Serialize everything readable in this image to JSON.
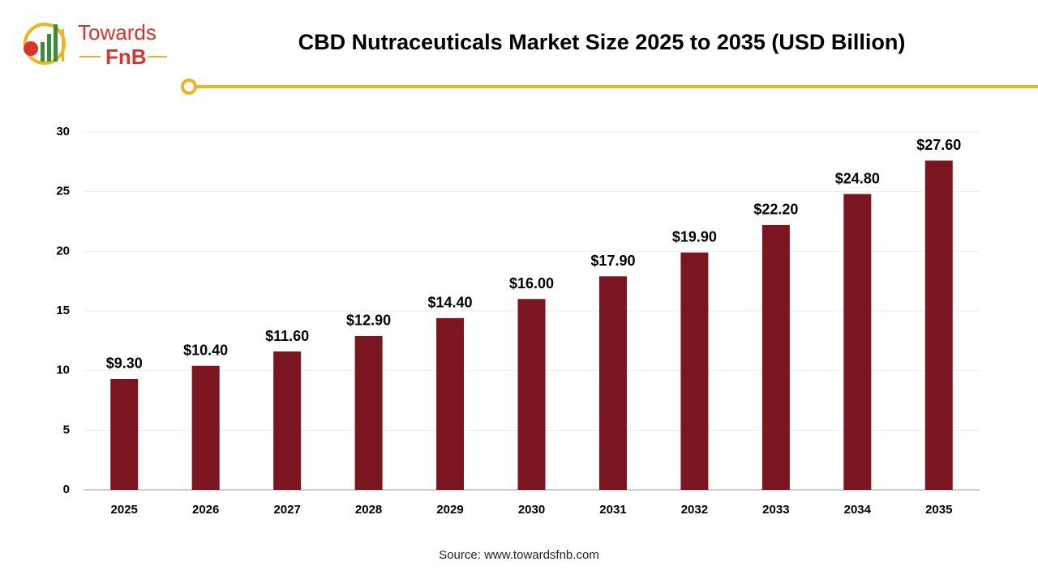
{
  "logo": {
    "line1": "Towards",
    "line2": "FnB"
  },
  "chart_data": {
    "type": "bar",
    "title": "CBD Nutraceuticals Market Size 2025 to 2035 (USD Billion)",
    "categories": [
      "2025",
      "2026",
      "2027",
      "2028",
      "2029",
      "2030",
      "2031",
      "2032",
      "2033",
      "2034",
      "2035"
    ],
    "values": [
      9.3,
      10.4,
      11.6,
      12.9,
      14.4,
      16.0,
      17.9,
      19.9,
      22.2,
      24.8,
      27.6
    ],
    "value_labels": [
      "$9.30",
      "$10.40",
      "$11.60",
      "$12.90",
      "$14.40",
      "$16.00",
      "$17.90",
      "$19.90",
      "$22.20",
      "$24.80",
      "$27.60"
    ],
    "color": "#7b1620",
    "ylim": [
      0,
      30
    ],
    "yticks": [
      0,
      5,
      10,
      15,
      20,
      25,
      30
    ],
    "grid": true,
    "source": "Source: www.towardsfnb.com"
  }
}
